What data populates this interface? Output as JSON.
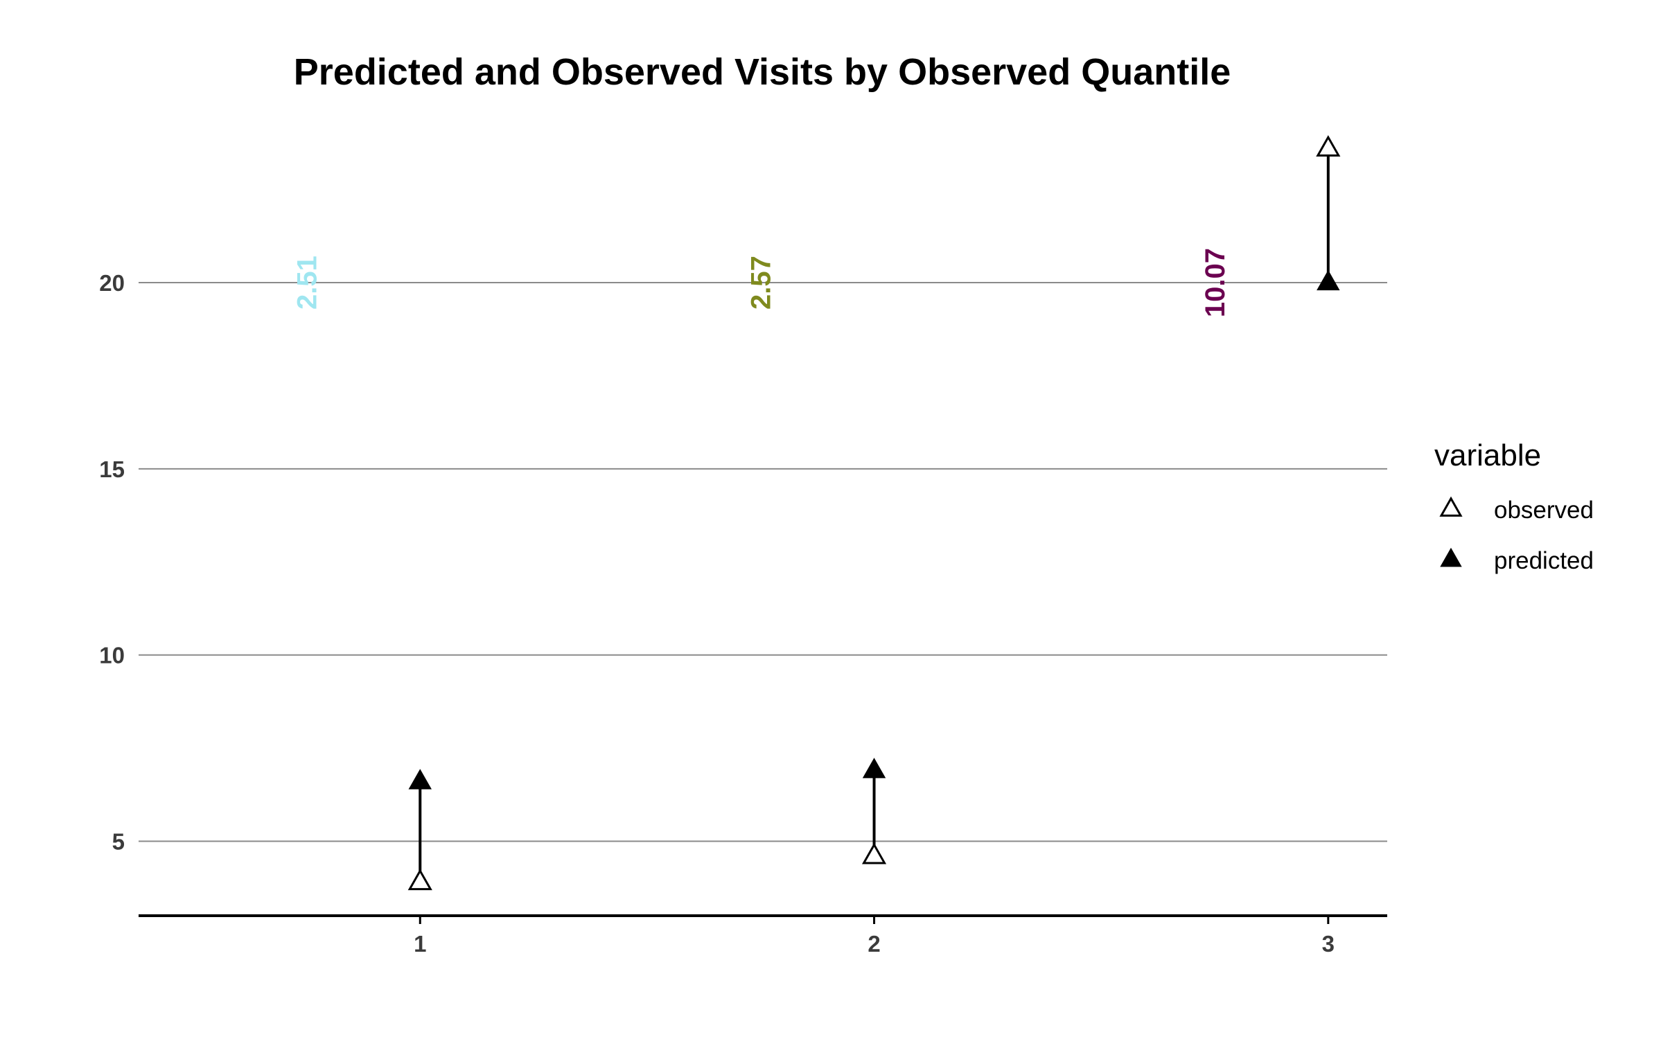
{
  "chart_data": {
    "type": "scatter",
    "title": "Predicted and Observed Visits by Observed Quantile",
    "xlabel": "",
    "ylabel": "",
    "x": [
      1,
      2,
      3
    ],
    "x_ticks": [
      "1",
      "2",
      "3"
    ],
    "xlim": [
      0.38,
      3.13
    ],
    "y_ticks": [
      "5",
      "10",
      "15",
      "20"
    ],
    "ylim": [
      3.0,
      24.8
    ],
    "grid": "horizontal",
    "legend": {
      "title": "variable",
      "placement": "right",
      "entries": [
        {
          "label": "observed",
          "marker": "open-triangle"
        },
        {
          "label": "predicted",
          "marker": "filled-triangle"
        }
      ]
    },
    "series": [
      {
        "name": "observed",
        "values": [
          3.9,
          4.6,
          23.6
        ],
        "marker": "open-triangle"
      },
      {
        "name": "predicted",
        "values": [
          6.6,
          6.9,
          20.0
        ],
        "marker": "filled-triangle"
      }
    ],
    "segments": "vertical line connecting observed and predicted per quantile",
    "annotations": [
      {
        "text": "2.51",
        "x": 0.75,
        "y": 20,
        "color": "#9fe6f0"
      },
      {
        "text": "2.57",
        "x": 1.75,
        "y": 20,
        "color": "#7f8a1e"
      },
      {
        "text": "10.07",
        "x": 2.75,
        "y": 20,
        "color": "#6b0050"
      }
    ]
  }
}
